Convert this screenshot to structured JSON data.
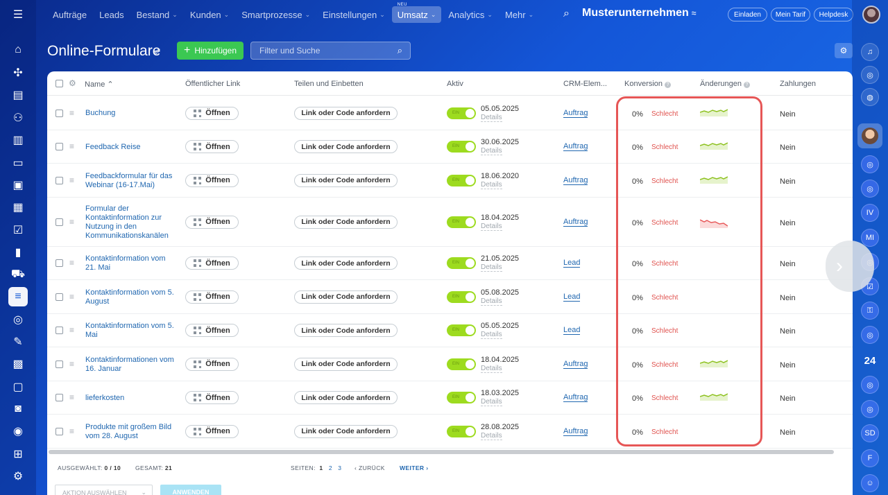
{
  "nav": {
    "items": [
      {
        "label": "Aufträge",
        "chev": false
      },
      {
        "label": "Leads",
        "chev": false
      },
      {
        "label": "Bestand",
        "chev": true
      },
      {
        "label": "Kunden",
        "chev": true
      },
      {
        "label": "Smartprozesse",
        "chev": true
      },
      {
        "label": "Einstellungen",
        "chev": true
      },
      {
        "label": "Umsatz",
        "chev": true,
        "badge": "NEU",
        "active": true
      },
      {
        "label": "Analytics",
        "chev": true
      },
      {
        "label": "Mehr",
        "chev": true
      }
    ],
    "company": "Musterunternehmen",
    "invite": "Einladen",
    "plan": "Mein Tarif",
    "help": "Helpdesk"
  },
  "page": {
    "title": "Online-Formulare",
    "add_label": "Hinzufügen",
    "filter_placeholder": "Filter und Suche"
  },
  "table": {
    "headers": {
      "name": "Name ⌃",
      "public_link": "Öffentlicher Link",
      "share": "Teilen und Einbetten",
      "active": "Aktiv",
      "crm": "CRM-Elem...",
      "conversion": "Konversion",
      "changes": "Änderungen",
      "payments": "Zahlungen"
    },
    "open_label": "Öffnen",
    "link_label": "Link oder Code anfordern",
    "toggle_label": "EIN",
    "details_label": "Details",
    "rows": [
      {
        "name": "Buchung",
        "date": "05.05.2025",
        "crm": "Auftrag",
        "conv": "0%",
        "rating": "Schlecht",
        "trend": "green",
        "pay": "Nein"
      },
      {
        "name": "Feedback Reise",
        "date": "30.06.2025",
        "crm": "Auftrag",
        "conv": "0%",
        "rating": "Schlecht",
        "trend": "green",
        "pay": "Nein"
      },
      {
        "name": "Feedbackformular für das Webinar (16-17.Mai)",
        "date": "18.06.2020",
        "crm": "Auftrag",
        "conv": "0%",
        "rating": "Schlecht",
        "trend": "green",
        "pay": "Nein"
      },
      {
        "name": "Formular der Kontaktinformation zur Nutzung in den Kommunikationskanälen",
        "date": "18.04.2025",
        "crm": "Auftrag",
        "conv": "0%",
        "rating": "Schlecht",
        "trend": "red",
        "pay": "Nein"
      },
      {
        "name": "Kontaktinformation vom 21. Mai",
        "date": "21.05.2025",
        "crm": "Lead",
        "conv": "0%",
        "rating": "Schlecht",
        "trend": "none",
        "pay": "Nein"
      },
      {
        "name": "Kontaktinformation vom 5. August",
        "date": "05.08.2025",
        "crm": "Lead",
        "conv": "0%",
        "rating": "Schlecht",
        "trend": "none",
        "pay": "Nein"
      },
      {
        "name": "Kontaktinformation vom 5. Mai",
        "date": "05.05.2025",
        "crm": "Lead",
        "conv": "0%",
        "rating": "Schlecht",
        "trend": "none",
        "pay": "Nein"
      },
      {
        "name": "Kontaktinformationen vom 16. Januar",
        "date": "18.04.2025",
        "crm": "Auftrag",
        "conv": "0%",
        "rating": "Schlecht",
        "trend": "green",
        "pay": "Nein"
      },
      {
        "name": "lieferkosten",
        "date": "18.03.2025",
        "crm": "Auftrag",
        "conv": "0%",
        "rating": "Schlecht",
        "trend": "green",
        "pay": "Nein"
      },
      {
        "name": "Produkte mit großem Bild vom 28. August",
        "date": "28.08.2025",
        "crm": "Auftrag",
        "conv": "0%",
        "rating": "Schlecht",
        "trend": "none",
        "pay": "Nein"
      }
    ]
  },
  "footer": {
    "selected_label": "Ausgewählt:",
    "selected_value": "0 / 10",
    "total_label": "Gesamt:",
    "total_value": "21",
    "pages_label": "Seiten:",
    "pages": [
      "1",
      "2",
      "3"
    ],
    "back": "Zurück",
    "next": "Weiter",
    "action_placeholder": "Aktion auswählen",
    "apply": "Anwenden"
  },
  "right_bar": {
    "counter": "24",
    "initials": [
      "IV",
      "MI",
      "SD",
      "F"
    ]
  }
}
